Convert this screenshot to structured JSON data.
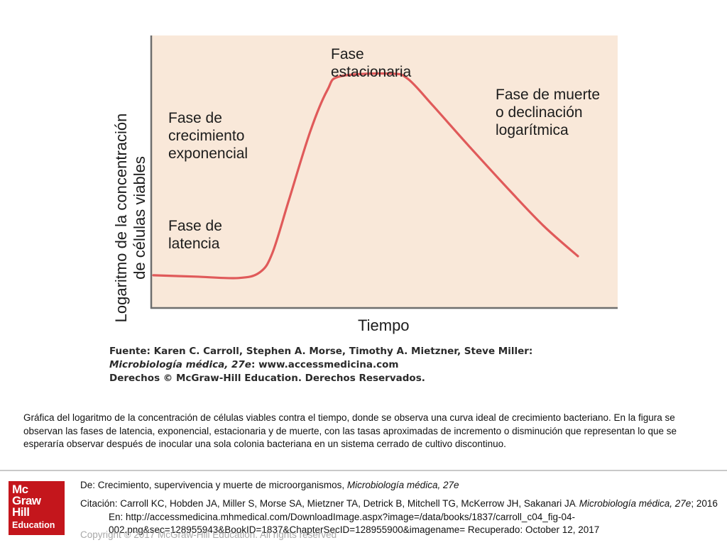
{
  "chart_data": {
    "type": "line",
    "xlabel": "Tiempo",
    "ylabel": "Logaritmo de la concentración\nde células viables",
    "grid": false,
    "series": [
      {
        "color": "#e05a5a",
        "points": [
          [
            0,
            0.12
          ],
          [
            10,
            0.115
          ],
          [
            20,
            0.11
          ],
          [
            25,
            0.13
          ],
          [
            28,
            0.2
          ],
          [
            32,
            0.4
          ],
          [
            37,
            0.65
          ],
          [
            41,
            0.8
          ],
          [
            44,
            0.85
          ],
          [
            56,
            0.86
          ],
          [
            60,
            0.84
          ],
          [
            66,
            0.74
          ],
          [
            74,
            0.6
          ],
          [
            84,
            0.43
          ],
          [
            92,
            0.3
          ],
          [
            100,
            0.19
          ]
        ]
      }
    ],
    "annotations": [
      {
        "text": "Fase de\nlatencia"
      },
      {
        "text": "Fase de\ncrecimiento\nexponencial"
      },
      {
        "text": "Fase\nestacionaria"
      },
      {
        "text": "Fase de muerte\no declinación\nlogarítmica"
      }
    ]
  },
  "source": {
    "line1": "Fuente: Karen C. Carroll, Stephen A. Morse, Timothy A. Mietzner, Steve Miller:",
    "line2_title": "Microbiología médica, 27e",
    "line2_rest": ": www.accessmedicina.com",
    "line3": "Derechos © McGraw-Hill Education. Derechos Reservados."
  },
  "caption": "Gráfica del logaritmo de la concentración de células viables contra el tiempo, donde se observa una curva ideal de crecimiento bacteriano. En la figura se observan las fases de latencia, exponencial, estacionaria y de muerte, con las tasas aproximadas de incremento o disminución que representan lo que se esperaría observar después de inocular una sola colonia bacteriana en un sistema cerrado de cultivo discontinuo.",
  "footer": {
    "logo": {
      "line1": "Mc",
      "line2": "Graw",
      "line3": "Hill",
      "line4": "Education"
    },
    "from_prefix": "De: Crecimiento, supervivencia y muerte de microorganismos, ",
    "from_title": "Microbiología médica, 27e",
    "citation_prefix": "Citación: Carroll KC, Hobden JA, Miller S, Morse SA, Mietzner TA, Detrick B, Mitchell TG, McKerrow JH, Sakanari JA",
    "citation_dot": ". ",
    "citation_title": "Microbiología médica, 27e",
    "citation_rest": "; 2016 En: http://accessmedicina.mhmedical.com/DownloadImage.aspx?image=/data/books/1837/carroll_c04_fig-04-002.png&sec=128955943&BookID=1837&ChapterSecID=128955900&imagename= Recuperado: October 12, 2017",
    "copyright": "Copyright © 2017 McGraw-Hill Education. All rights reserved"
  }
}
